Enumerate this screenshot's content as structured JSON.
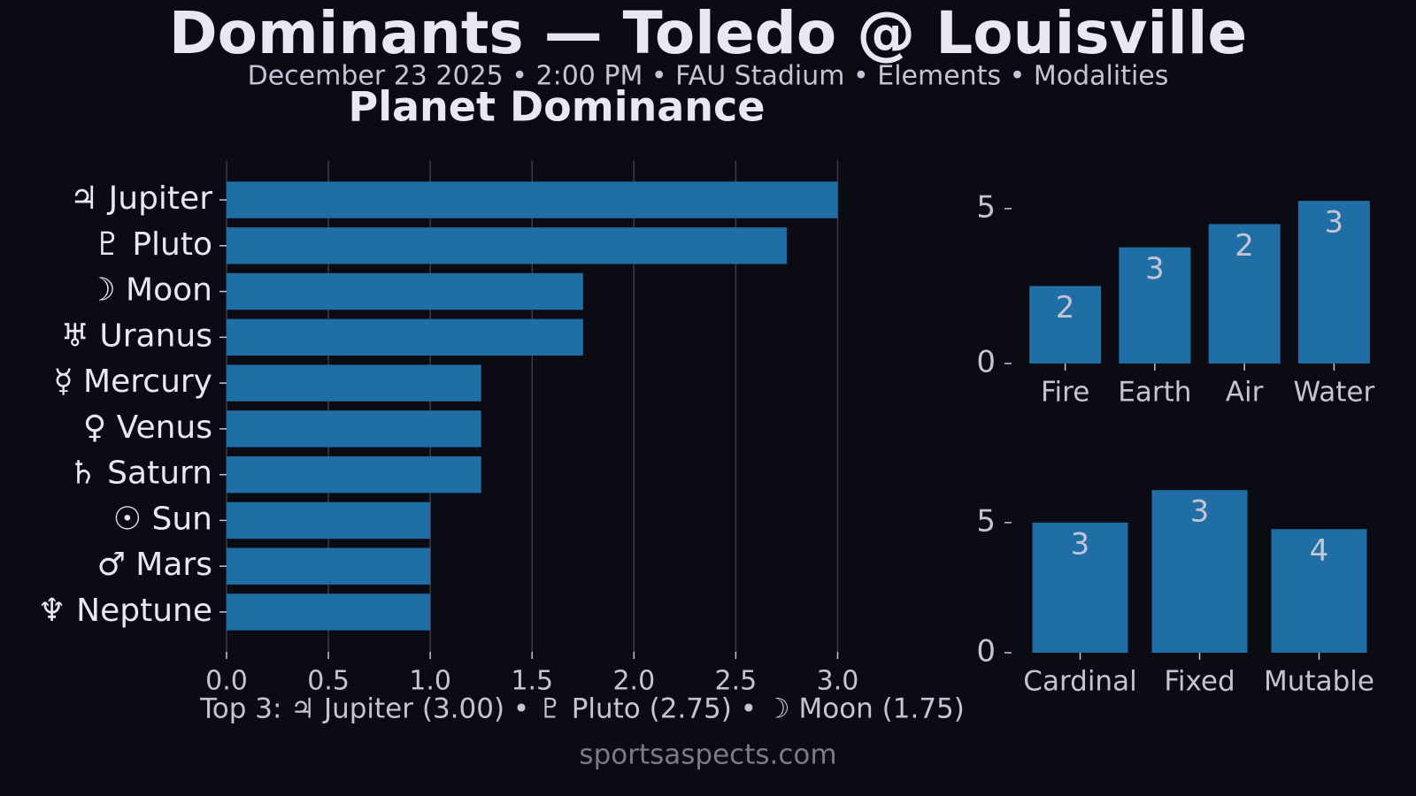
{
  "title": "Dominants — Toledo @ Louisville",
  "subtitle": "December 23 2025 • 2:00 PM • FAU Stadium • Elements • Modalities",
  "footer": "Top 3: ♃ Jupiter (3.00) • ♇ Pluto (2.75) • ☽ Moon (1.75)",
  "watermark": "sportsaspects.com",
  "chart_data": [
    {
      "type": "barh",
      "title": "Planet Dominance",
      "color": "#1f6ea6",
      "categories": [
        "♃ Jupiter",
        "♇ Pluto",
        "☽ Moon",
        "♅ Uranus",
        "☿ Mercury",
        "♀ Venus",
        "♄ Saturn",
        "☉ Sun",
        "♂ Mars",
        "♆ Neptune"
      ],
      "values": [
        3.0,
        2.75,
        1.75,
        1.75,
        1.25,
        1.25,
        1.25,
        1.0,
        1.0,
        1.0
      ],
      "xlim": [
        0,
        3.15
      ],
      "xticks": [
        {
          "value": 0,
          "label": "0.0"
        },
        {
          "value": 0.5,
          "label": "0.5"
        },
        {
          "value": 1,
          "label": "1.0"
        },
        {
          "value": 1.5,
          "label": "1.5"
        },
        {
          "value": 2,
          "label": "2.0"
        },
        {
          "value": 2.5,
          "label": "2.5"
        },
        {
          "value": 3,
          "label": "3.0"
        }
      ],
      "grid": true
    },
    {
      "type": "bar",
      "color": "#1f6ea6",
      "categories": [
        "Fire",
        "Earth",
        "Air",
        "Water"
      ],
      "values": [
        2.5,
        3.75,
        4.5,
        5.25
      ],
      "counts": [
        2,
        3,
        2,
        3
      ],
      "ylim": [
        0,
        5.51
      ],
      "yticks": [
        0,
        5
      ]
    },
    {
      "type": "bar",
      "color": "#1f6ea6",
      "categories": [
        "Cardinal",
        "Fixed",
        "Mutable"
      ],
      "values": [
        5.0,
        6.25,
        4.75
      ],
      "counts": [
        3,
        3,
        4
      ],
      "ylim": [
        0,
        6.56
      ],
      "yticks": [
        0,
        5
      ]
    }
  ]
}
